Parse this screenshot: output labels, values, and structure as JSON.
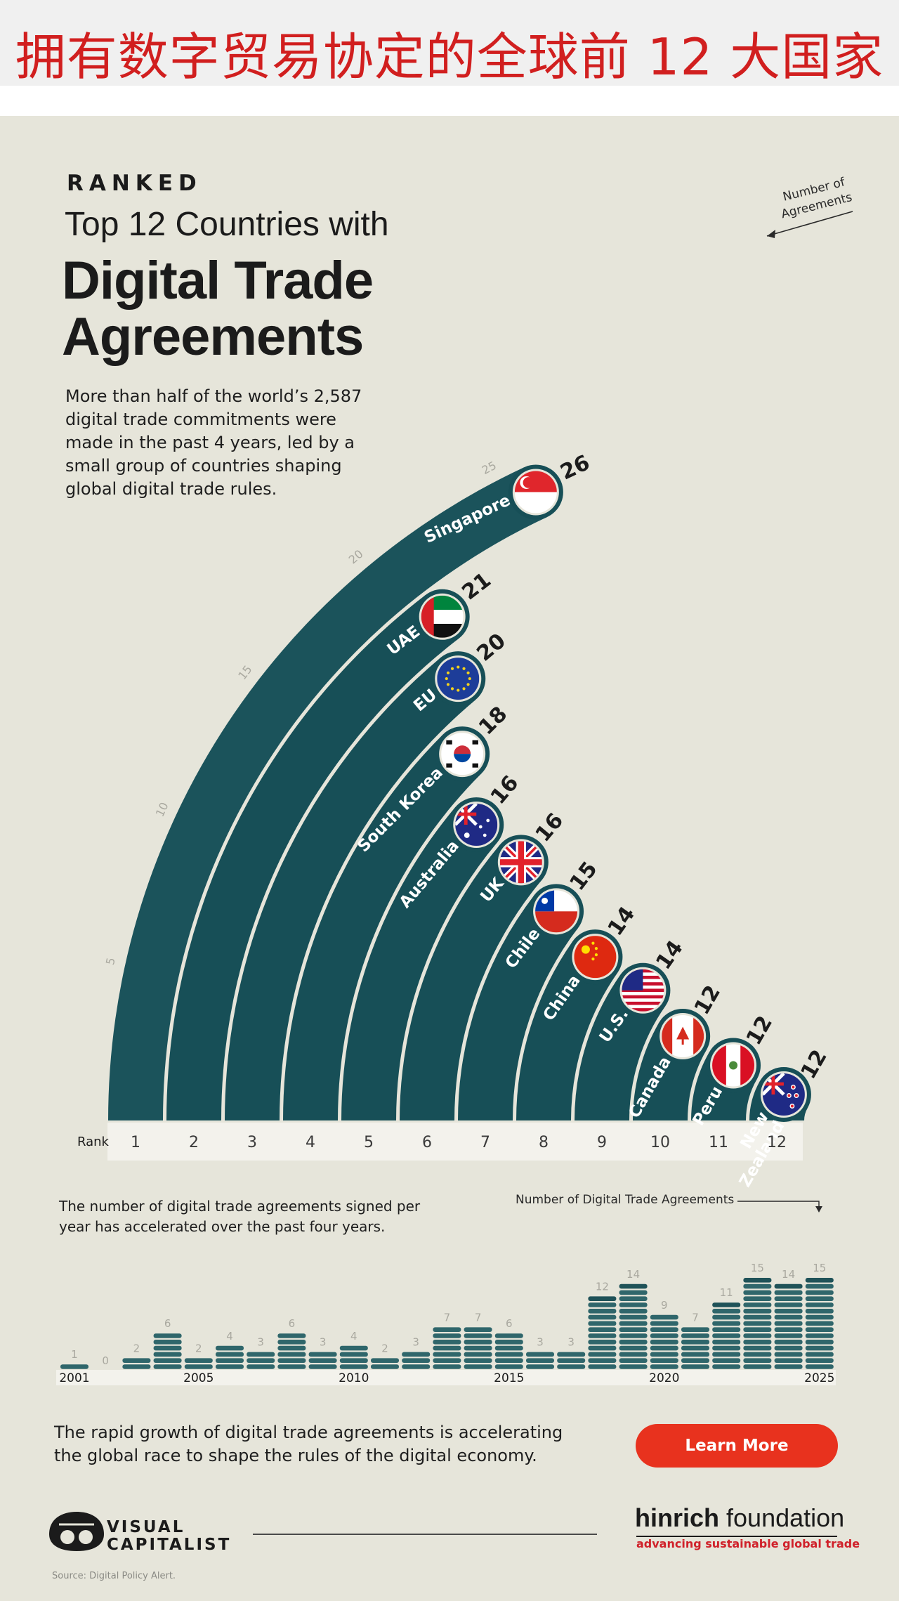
{
  "banner": {
    "title": "拥有数字贸易协定的全球前 12 大国家"
  },
  "header": {
    "kicker": "RANKED",
    "title_line1": "Top 12 Countries with",
    "title_line2": "Digital Trade",
    "title_line3": "Agreements"
  },
  "intro": "More than half of the world’s 2,587 digital trade commitments were made in the past 4 years, led by a small group of countries shaping global digital trade rules.",
  "annotation": "Number of Agreements",
  "rank_label": "Rank",
  "bar_note": "The number of digital trade agreements signed per year has accelerated over the past four years.",
  "bars_caption": "Number of Digital Trade Agreements",
  "footer": {
    "text": "The rapid growth of digital trade agreements is accelerating the global race to shape the rules of the digital economy.",
    "cta_label": "Learn More",
    "vc_line1": "VISUAL",
    "vc_line2": "CAPITALIST",
    "hinrich_bold": "hinrich",
    "hinrich_rest": " foundation",
    "hinrich_tagline": "advancing sustainable global trade",
    "source": "Source: Digital Policy Alert."
  },
  "colors": {
    "track": "#174f57",
    "bar": "#2f666b",
    "cta": "#e8321e",
    "banner_title": "#d11f1f"
  },
  "chart_data": [
    {
      "type": "bar",
      "subtype": "radial",
      "categories": [
        "Singapore",
        "UAE",
        "EU",
        "South Korea",
        "Australia",
        "UK",
        "Chile",
        "China",
        "U.S.",
        "Canada",
        "Peru",
        "New Zealand"
      ],
      "values": [
        26,
        21,
        20,
        18,
        16,
        16,
        15,
        14,
        14,
        12,
        12,
        12
      ],
      "ranks": [
        "1",
        "2",
        "3",
        "4",
        "5",
        "6",
        "7",
        "8",
        "9",
        "10",
        "11",
        "12"
      ],
      "flag_icons": [
        "singapore-flag-icon",
        "uae-flag-icon",
        "eu-flag-icon",
        "south-korea-flag-icon",
        "australia-flag-icon",
        "uk-flag-icon",
        "chile-flag-icon",
        "china-flag-icon",
        "us-flag-icon",
        "canada-flag-icon",
        "peru-flag-icon",
        "new-zealand-flag-icon"
      ],
      "scale_ticks": [
        "5",
        "10",
        "15",
        "20",
        "25"
      ],
      "vmax": 27
    },
    {
      "type": "bar",
      "categories": [
        "2001",
        "2002",
        "2003",
        "2004",
        "2005",
        "2006",
        "2007",
        "2008",
        "2009",
        "2010",
        "2011",
        "2012",
        "2013",
        "2014",
        "2015",
        "2016",
        "2017",
        "2018",
        "2019",
        "2020",
        "2021",
        "2022",
        "2023",
        "2024",
        "2025"
      ],
      "values": [
        1,
        0,
        2,
        6,
        2,
        4,
        3,
        6,
        3,
        4,
        2,
        3,
        7,
        7,
        6,
        3,
        3,
        12,
        14,
        9,
        7,
        11,
        15,
        14,
        15
      ],
      "x_tick_labels": [
        "2001",
        "2005",
        "2010",
        "2015",
        "2020",
        "2025"
      ],
      "ylim": [
        0,
        15
      ]
    }
  ]
}
